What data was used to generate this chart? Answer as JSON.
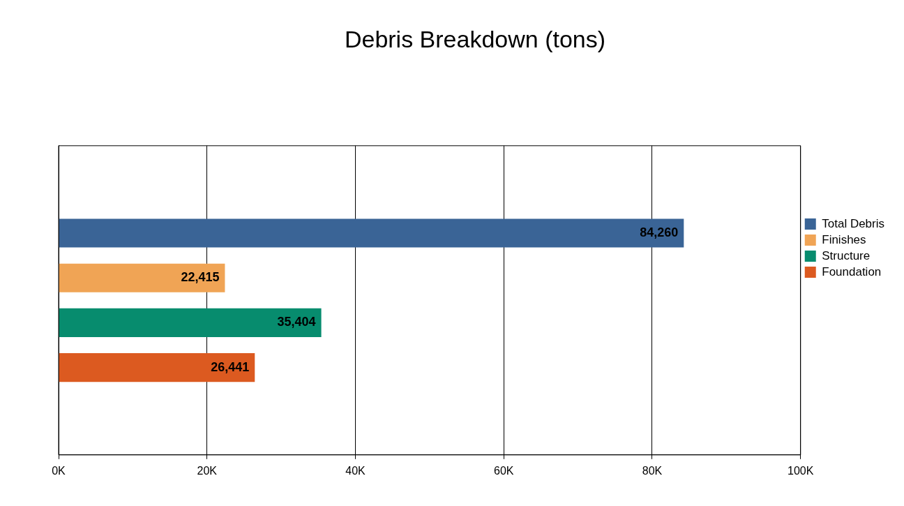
{
  "chart_data": {
    "type": "bar",
    "title": "Debris Breakdown (tons)",
    "orientation": "horizontal",
    "categories": [
      null
    ],
    "series": [
      {
        "name": "Total Debris",
        "color": "#3a6496",
        "values": [
          84260
        ],
        "value_labels": [
          "84,260"
        ]
      },
      {
        "name": "Finishes",
        "color": "#f0a455",
        "values": [
          22415
        ],
        "value_labels": [
          "22,415"
        ]
      },
      {
        "name": "Structure",
        "color": "#078c6e",
        "values": [
          35404
        ],
        "value_labels": [
          "35,404"
        ]
      },
      {
        "name": "Foundation",
        "color": "#dc5a20",
        "values": [
          26441
        ],
        "value_labels": [
          "26,441"
        ]
      }
    ],
    "xlim": [
      0,
      100000
    ],
    "xticks": [
      {
        "value": 0,
        "label": "0K"
      },
      {
        "value": 20000,
        "label": "20K"
      },
      {
        "value": 40000,
        "label": "40K"
      },
      {
        "value": 60000,
        "label": "60K"
      },
      {
        "value": 80000,
        "label": "80K"
      },
      {
        "value": 100000,
        "label": "100K"
      }
    ],
    "grid": "x",
    "legend": "right",
    "tick_labels": "x"
  }
}
